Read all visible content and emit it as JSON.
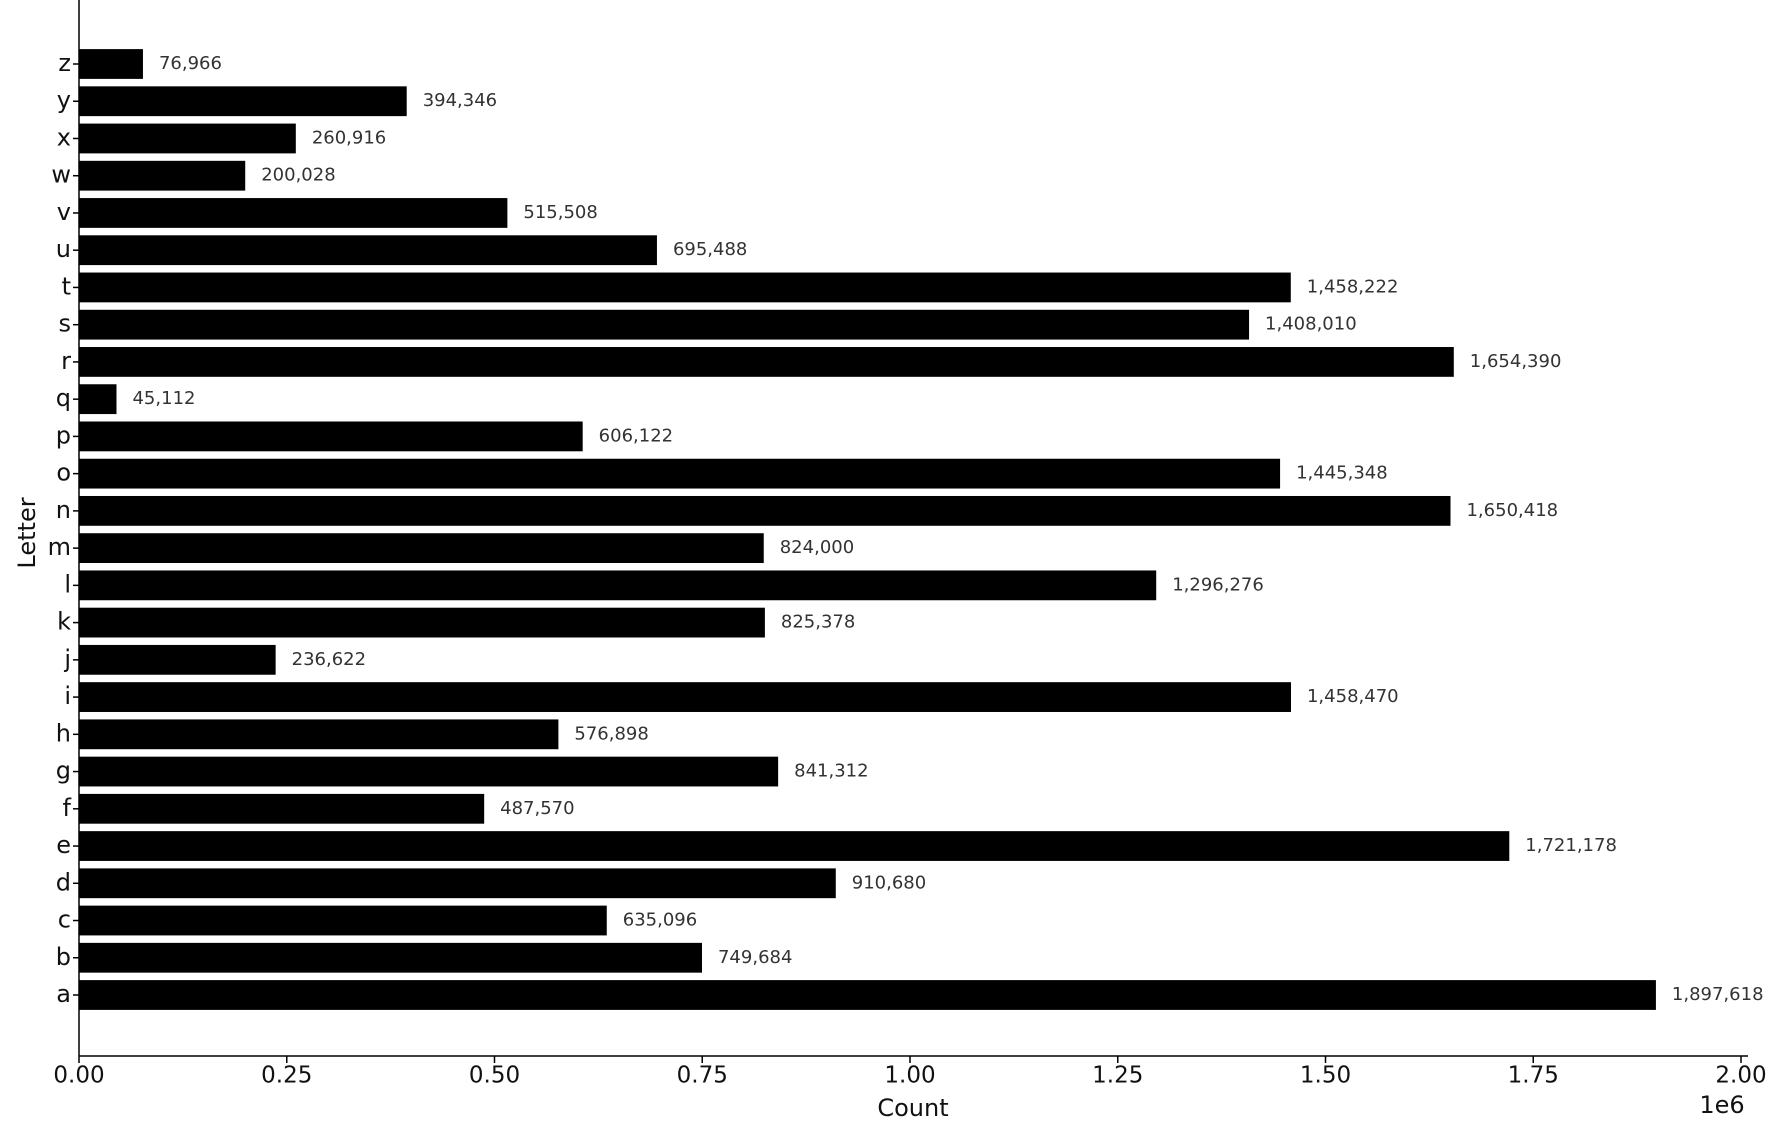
{
  "chart_data": {
    "type": "barh",
    "x_label": "Count",
    "y_label": "Letter",
    "x_offset_label": "1e6",
    "categories": [
      "a",
      "b",
      "c",
      "d",
      "e",
      "f",
      "g",
      "h",
      "i",
      "j",
      "k",
      "l",
      "m",
      "n",
      "o",
      "p",
      "q",
      "r",
      "s",
      "t",
      "u",
      "v",
      "w",
      "x",
      "y",
      "z"
    ],
    "values": [
      1897618,
      749684,
      635096,
      910680,
      1721178,
      487570,
      841312,
      576898,
      1458470,
      236622,
      825378,
      1296276,
      824000,
      1650418,
      1445348,
      606122,
      45112,
      1654390,
      1408010,
      1458222,
      695488,
      515508,
      200028,
      260916,
      394346,
      76966
    ],
    "value_labels": [
      "1,897,618",
      "749,684",
      "635,096",
      "910,680",
      "1,721,178",
      "487,570",
      "841,312",
      "576,898",
      "1,458,470",
      "236,622",
      "825,378",
      "1,296,276",
      "824,000",
      "1,650,418",
      "1,445,348",
      "606,122",
      "45,112",
      "1,654,390",
      "1,408,010",
      "1,458,222",
      "695,488",
      "515,508",
      "200,028",
      "260,916",
      "394,346",
      "76,966"
    ],
    "color": "#000000",
    "xlim": [
      0,
      2000000
    ],
    "xticks": [
      {
        "value": 0,
        "label": "0.00"
      },
      {
        "value": 250000,
        "label": "0.25"
      },
      {
        "value": 500000,
        "label": "0.50"
      },
      {
        "value": 750000,
        "label": "0.75"
      },
      {
        "value": 1000000,
        "label": "1.00"
      },
      {
        "value": 1250000,
        "label": "1.25"
      },
      {
        "value": 1500000,
        "label": "1.50"
      },
      {
        "value": 1750000,
        "label": "1.75"
      },
      {
        "value": 2000000,
        "label": "2.00"
      }
    ],
    "grid": false
  }
}
